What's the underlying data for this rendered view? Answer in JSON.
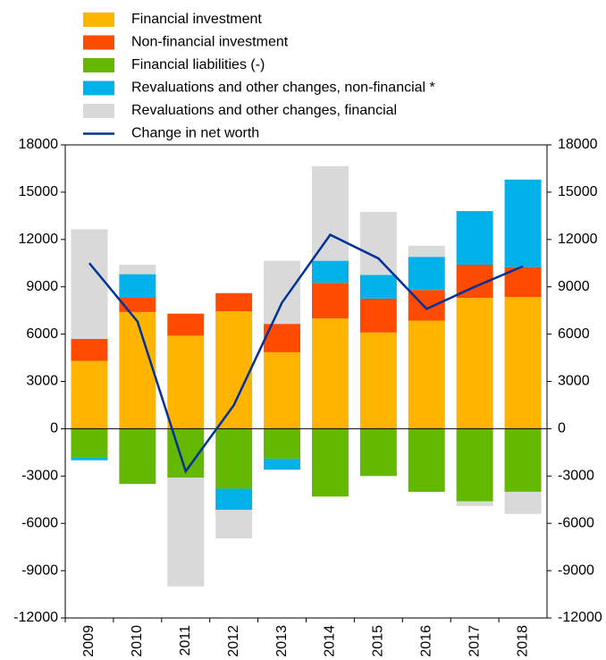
{
  "chart_data": {
    "type": "bar",
    "stacked": true,
    "categories": [
      "2009",
      "2010",
      "2011",
      "2012",
      "2013",
      "2014",
      "2015",
      "2016",
      "2017",
      "2018"
    ],
    "series": [
      {
        "name": "Financial investment",
        "type": "bar",
        "color": "#ffb400",
        "values": [
          4300,
          7400,
          5900,
          7450,
          4850,
          7000,
          6100,
          6850,
          8300,
          8350
        ]
      },
      {
        "name": "Non-financial investment",
        "type": "bar",
        "color": "#ff4b00",
        "values": [
          1400,
          900,
          1400,
          1150,
          1800,
          2250,
          2150,
          1950,
          2100,
          1900
        ]
      },
      {
        "name": "Financial liabilities (-)",
        "type": "bar",
        "color": "#65b800",
        "values": [
          -1800,
          -3500,
          -3100,
          -3800,
          -1900,
          -4300,
          -3000,
          -4000,
          -4600,
          -4000
        ]
      },
      {
        "name": "Revaluations and other changes, non-financial *",
        "type": "bar",
        "color": "#00b1ea",
        "values": [
          -200,
          1500,
          0,
          -1350,
          -700,
          1400,
          1500,
          2100,
          3400,
          5550
        ]
      },
      {
        "name": "Revaluations and other changes, financial",
        "type": "bar",
        "color": "#d9d9d9",
        "values": [
          6950,
          600,
          -6900,
          -1800,
          4000,
          6000,
          4000,
          700,
          -300,
          -1400
        ]
      },
      {
        "name": "Change in net worth",
        "type": "line",
        "color": "#003299",
        "values": [
          10500,
          6800,
          -2700,
          1500,
          8000,
          12300,
          10800,
          7600,
          9000,
          10300
        ]
      }
    ],
    "ylim": [
      -12000,
      18000
    ],
    "yticks": [
      -12000,
      -9000,
      -6000,
      -3000,
      0,
      3000,
      6000,
      9000,
      12000,
      15000,
      18000
    ],
    "y2lim": [
      -12000,
      18000
    ],
    "y2ticks": [
      -12000,
      -9000,
      -6000,
      -3000,
      0,
      3000,
      6000,
      9000,
      12000,
      15000,
      18000
    ],
    "legend": "top"
  }
}
